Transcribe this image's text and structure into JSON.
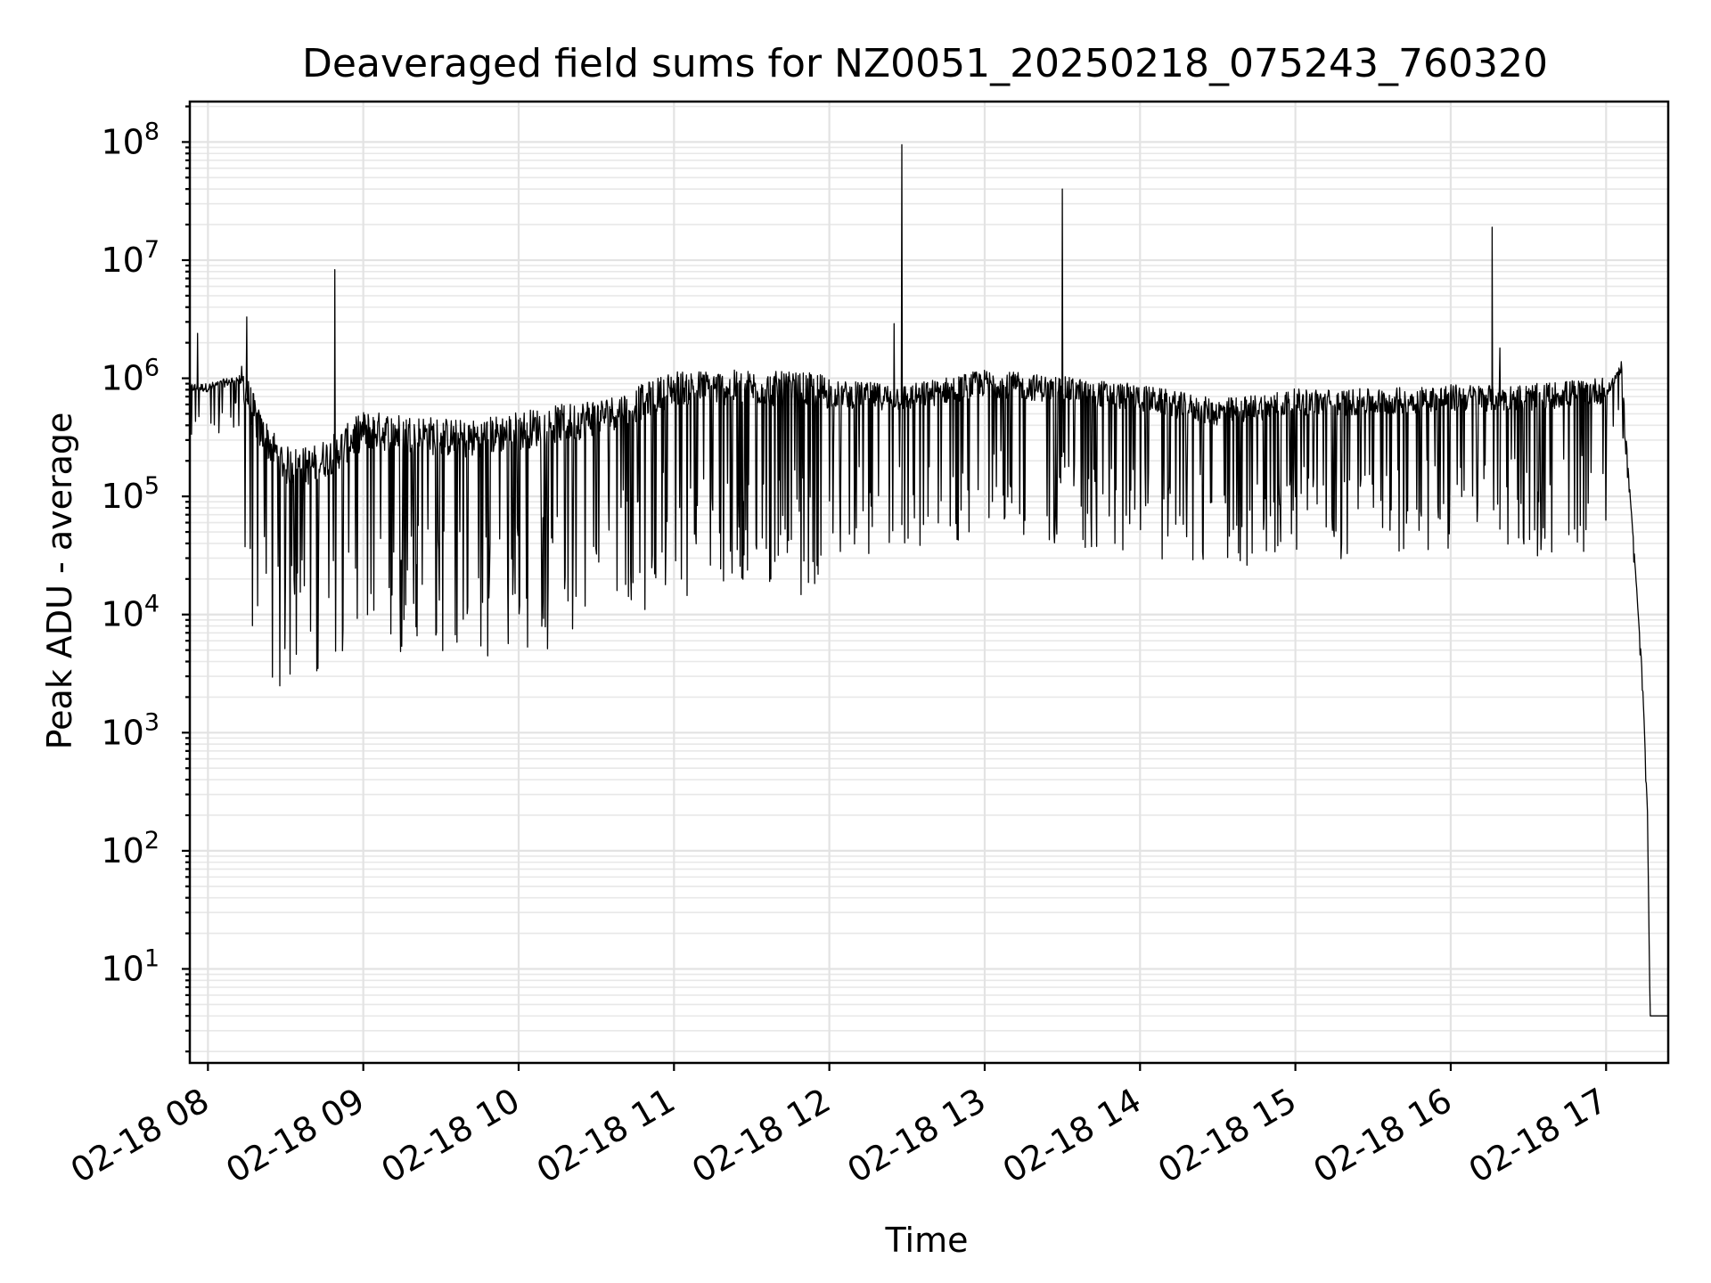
{
  "chart_data": {
    "type": "line",
    "title": "Deaveraged field sums for NZ0051_20250218_075243_760320",
    "xlabel": "Time",
    "ylabel": "Peak ADU - average",
    "yscale": "log",
    "xlim": [
      "2025-02-18 07:53",
      "2025-02-18 17:24"
    ],
    "ylim": [
      1.6,
      220000000.0
    ],
    "grid": true,
    "line_color": "#000000",
    "x_ticks": [
      "02-18 08",
      "02-18 09",
      "02-18 10",
      "02-18 11",
      "02-18 12",
      "02-18 13",
      "02-18 14",
      "02-18 15",
      "02-18 16",
      "02-18 17"
    ],
    "y_ticks": [
      {
        "value": 10,
        "base": "10",
        "exp": "1"
      },
      {
        "value": 100,
        "base": "10",
        "exp": "2"
      },
      {
        "value": 1000,
        "base": "10",
        "exp": "3"
      },
      {
        "value": 10000,
        "base": "10",
        "exp": "4"
      },
      {
        "value": 100000,
        "base": "10",
        "exp": "5"
      },
      {
        "value": 1000000,
        "base": "10",
        "exp": "6"
      },
      {
        "value": 10000000,
        "base": "10",
        "exp": "7"
      },
      {
        "value": 100000000,
        "base": "10",
        "exp": "8"
      }
    ],
    "series": [
      {
        "x": [
          "2025-02-18 07:53",
          "2025-02-18 08:00",
          "2025-02-18 08:12",
          "2025-02-18 08:20",
          "2025-02-18 08:30",
          "2025-02-18 08:40",
          "2025-02-18 08:50",
          "2025-02-18 09:00",
          "2025-02-18 09:20",
          "2025-02-18 09:40",
          "2025-02-18 10:00",
          "2025-02-18 10:20",
          "2025-02-18 10:40",
          "2025-02-18 11:00",
          "2025-02-18 11:30",
          "2025-02-18 12:00",
          "2025-02-18 12:30",
          "2025-02-18 13:00",
          "2025-02-18 13:30",
          "2025-02-18 14:00",
          "2025-02-18 14:30",
          "2025-02-18 15:00",
          "2025-02-18 15:30",
          "2025-02-18 16:00",
          "2025-02-18 16:30",
          "2025-02-18 17:00",
          "2025-02-18 17:06",
          "2025-02-18 17:08",
          "2025-02-18 17:11",
          "2025-02-18 17:14",
          "2025-02-18 17:16",
          "2025-02-18 17:17",
          "2025-02-18 17:24"
        ],
        "values": [
          800000,
          800000,
          950000,
          300000,
          150000,
          150000,
          200000,
          300000,
          280000,
          250000,
          300000,
          350000,
          450000,
          700000,
          700000,
          650000,
          600000,
          800000,
          700000,
          600000,
          450000,
          550000,
          550000,
          600000,
          600000,
          700000,
          1200000,
          250000,
          30000,
          3000,
          200,
          4,
          4
        ],
        "spikes": [
          {
            "x": "2025-02-18 07:56",
            "y": 2400000
          },
          {
            "x": "2025-02-18 08:15",
            "y": 3300000
          },
          {
            "x": "2025-02-18 08:49",
            "y": 8300000
          },
          {
            "x": "2025-02-18 12:25",
            "y": 2900000
          },
          {
            "x": "2025-02-18 12:28",
            "y": 95000000
          },
          {
            "x": "2025-02-18 13:30",
            "y": 40000000
          },
          {
            "x": "2025-02-18 16:16",
            "y": 19000000
          },
          {
            "x": "2025-02-18 16:19",
            "y": 1800000
          }
        ]
      }
    ]
  }
}
